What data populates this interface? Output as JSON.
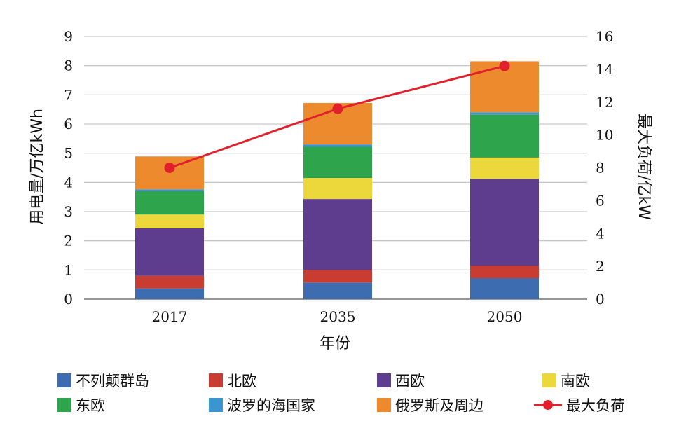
{
  "chart_data": {
    "type": "bar",
    "stacked": true,
    "categories": [
      "2017",
      "2035",
      "2050"
    ],
    "xlabel": "年份",
    "ylabel": "用电量/万亿kWh",
    "y2label": "最大负荷/亿kW",
    "ylim": [
      0,
      9
    ],
    "y2lim": [
      0,
      16
    ],
    "yticks": [
      "0",
      "1",
      "2",
      "3",
      "4",
      "5",
      "6",
      "7",
      "8",
      "9"
    ],
    "y2ticks": [
      "0",
      "2",
      "4",
      "6",
      "8",
      "10",
      "12",
      "14",
      "16"
    ],
    "grid": true,
    "legend_position": "bottom",
    "series": [
      {
        "name": "不列颠群岛",
        "color": "#3e6cb0",
        "values": [
          0.37,
          0.57,
          0.72
        ]
      },
      {
        "name": "北欧",
        "color": "#c83c32",
        "values": [
          0.43,
          0.43,
          0.43
        ]
      },
      {
        "name": "西欧",
        "color": "#5e3c8e",
        "values": [
          1.63,
          2.43,
          2.97
        ]
      },
      {
        "name": "南欧",
        "color": "#ecd83a",
        "values": [
          0.47,
          0.72,
          0.73
        ]
      },
      {
        "name": "东欧",
        "color": "#2ea44c",
        "values": [
          0.8,
          1.07,
          1.47
        ]
      },
      {
        "name": "波罗的海国家",
        "color": "#3a95d0",
        "values": [
          0.06,
          0.08,
          0.08
        ]
      },
      {
        "name": "俄罗斯及周边",
        "color": "#ee8a2e",
        "values": [
          1.13,
          1.42,
          1.75
        ]
      }
    ],
    "line_series": {
      "name": "最大负荷",
      "color": "#e0212b",
      "axis": "right",
      "values": [
        8.0,
        11.6,
        14.2
      ]
    }
  }
}
